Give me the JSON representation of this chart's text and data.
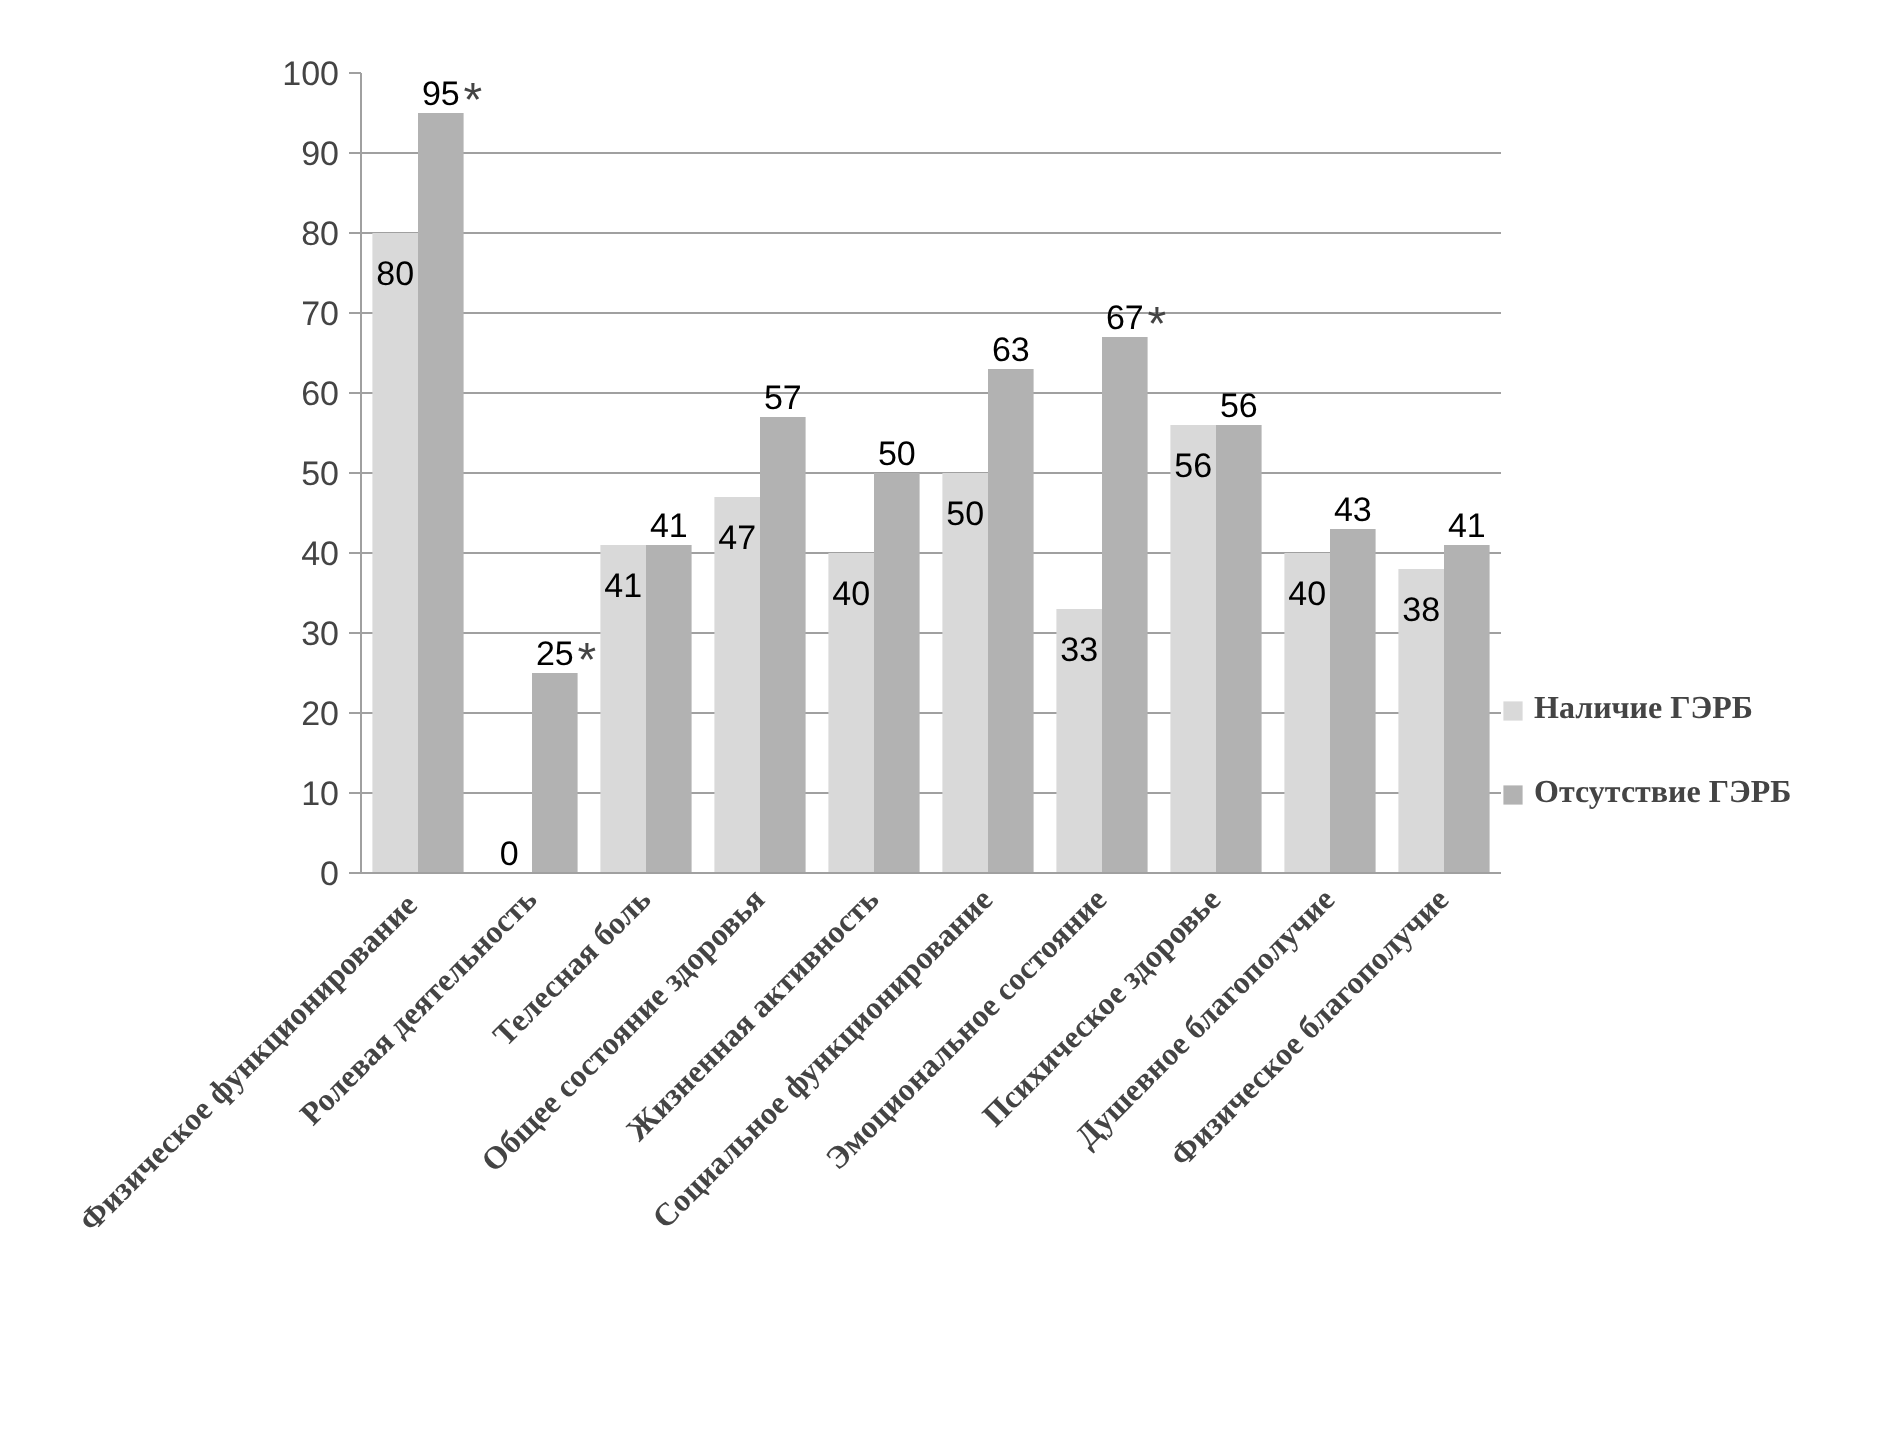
{
  "chart_data": {
    "type": "bar",
    "categories": [
      "Физическое  функционирование",
      "Ролевая деятельность",
      "Телесная боль",
      "Общее состояние здоровья",
      "Жизненная активность",
      "Социальное функционирование",
      "Эмоциональное состояние",
      "Психическое здоровье",
      "Душевное благополучие",
      "Физическое благополучие"
    ],
    "series": [
      {
        "name": "Наличие ГЭРБ",
        "color": "#d9d9d9",
        "values": [
          80,
          0,
          41,
          47,
          40,
          50,
          33,
          56,
          40,
          38
        ]
      },
      {
        "name": "Отсутствие ГЭРБ",
        "color": "#b2b2b2",
        "values": [
          95,
          25,
          41,
          57,
          50,
          63,
          67,
          56,
          43,
          41
        ]
      }
    ],
    "ylim": [
      0,
      100
    ],
    "yticks": [
      0,
      10,
      20,
      30,
      40,
      50,
      60,
      70,
      80,
      90,
      100
    ],
    "grid": "y",
    "legend": "bottom right",
    "data_labels": true,
    "annotations": [
      {
        "text": "*",
        "x": "Физическое  функционирование",
        "y": 95
      },
      {
        "text": "*",
        "x": "Ролевая деятельность",
        "y": 25
      },
      {
        "text": "*",
        "x": "Эмоциональное состояние",
        "y": 67
      }
    ]
  }
}
